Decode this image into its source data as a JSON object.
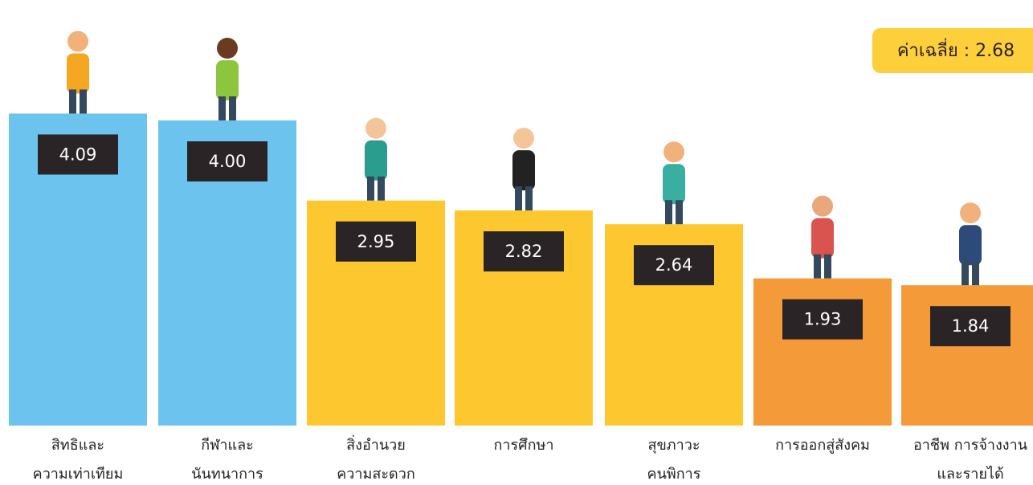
{
  "chart_data": {
    "type": "bar",
    "annotation": "ค่าเฉลี่ย : 2.68",
    "categories": [
      [
        "สิทธิและ",
        "ความเท่าเทียม"
      ],
      [
        "กีฬาและ",
        "นันทนาการ"
      ],
      [
        "สิ่งอำนวย",
        "ความสะดวก"
      ],
      [
        "การศึกษา"
      ],
      [
        "สุขภาวะ",
        "คนพิการ"
      ],
      [
        "การออกสู่สังคม"
      ],
      [
        "อาชีพ การจ้างงาน",
        "และรายได้"
      ]
    ],
    "values": [
      4.09,
      4.0,
      2.95,
      2.82,
      2.64,
      1.93,
      1.84
    ],
    "value_labels": [
      "4.09",
      "4.00",
      "2.95",
      "2.82",
      "2.64",
      "1.93",
      "1.84"
    ],
    "colors": [
      "#6cc4ee",
      "#6cc4ee",
      "#fdc82f",
      "#fdc82f",
      "#fdc82f",
      "#f49a38",
      "#f49a38"
    ]
  }
}
